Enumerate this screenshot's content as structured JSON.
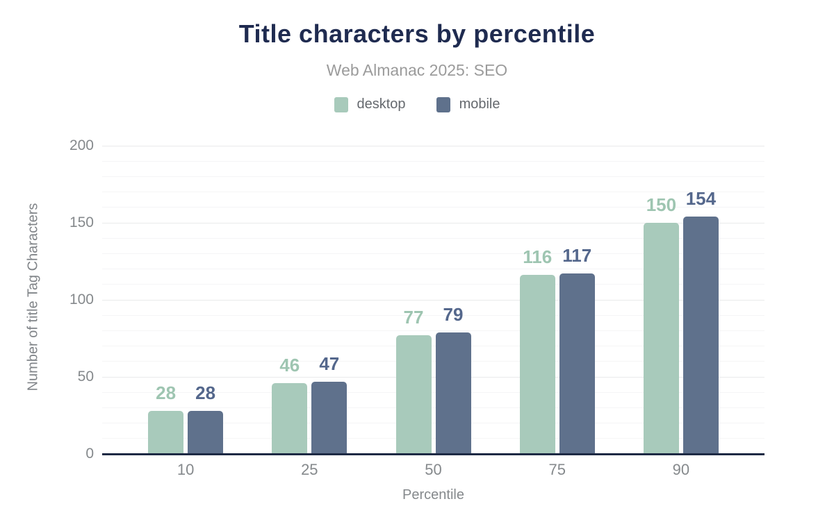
{
  "chart_data": {
    "type": "bar",
    "title": "Title characters by percentile",
    "subtitle": "Web Almanac 2025: SEO",
    "xlabel": "Percentile",
    "ylabel": "Number of title Tag Characters",
    "categories": [
      "10",
      "25",
      "50",
      "75",
      "90"
    ],
    "series": [
      {
        "name": "desktop",
        "color": "#a8cabb",
        "label_color": "#9ec5b1",
        "values": [
          28,
          46,
          77,
          116,
          150
        ]
      },
      {
        "name": "mobile",
        "color": "#5f718c",
        "label_color": "#54678c",
        "values": [
          28,
          47,
          79,
          117,
          154
        ]
      }
    ],
    "ylim": [
      0,
      200
    ],
    "yticks": [
      0,
      50,
      100,
      150,
      200
    ],
    "minor_grid_step": 10,
    "major_grid_step": 50,
    "grid": true,
    "legend_position": "top"
  },
  "colors": {
    "title": "#1f2b50",
    "subtitle": "#9b9b9b",
    "legend_text": "#65696e",
    "axis_line": "#1e2a44",
    "tick_text": "#85898c",
    "grid_minor": "#f5f5f6",
    "grid_major": "#e9eaeb",
    "background": "#ffffff",
    "desktop": "#a8cabb",
    "mobile": "#5f718c"
  }
}
